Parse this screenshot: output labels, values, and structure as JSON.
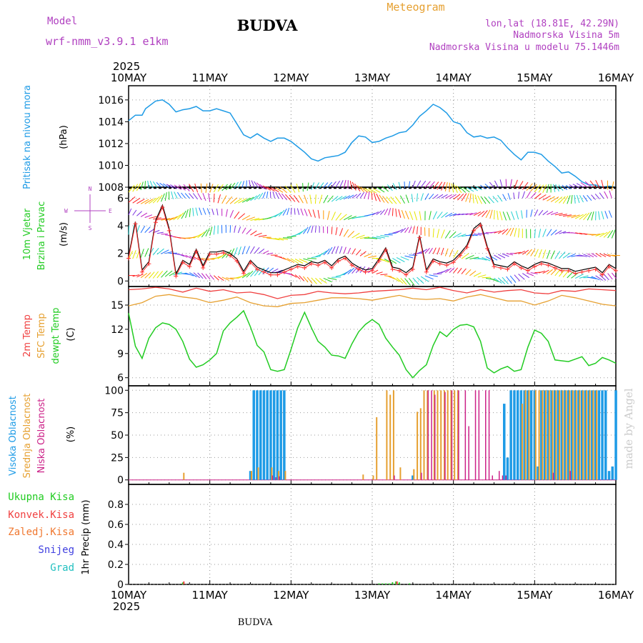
{
  "header": {
    "model_label": "Model",
    "model_name": "wrf-nmm_v3.9.1 e1km",
    "station": "BUDVA",
    "title": "Meteogram",
    "lonlat": "lon,lat (18.81E, 42.29N)",
    "elevation": "Nadmorska Visina 5m",
    "model_elevation": "Nadmorska Visina u modelu 75.1446m",
    "footer_station": "BUDVA",
    "watermark": "made by Angel"
  },
  "time_axis": {
    "year": "2025",
    "labels": [
      "10MAY",
      "11MAY",
      "12MAY",
      "13MAY",
      "14MAY",
      "15MAY",
      "16MAY"
    ],
    "range_hours": [
      0,
      144
    ]
  },
  "colors": {
    "pressure": "#1e9be6",
    "temp2m": "#f04040",
    "sfc_temp": "#e6a030",
    "dewpoint": "#22cc22",
    "high_cloud": "#1e9be6",
    "mid_cloud": "#e6a030",
    "low_cloud": "#cc2288",
    "total_precip": "#22cc22",
    "conv_precip": "#f04040",
    "frz_precip": "#f07830",
    "snow": "#4040e0",
    "graupel": "#22c0c0",
    "wind_label": "#22cc22",
    "compass": "#b040c0",
    "wind_barb_colors": [
      "#ff2020",
      "#ff9a00",
      "#e6e600",
      "#22cc22",
      "#22d0d0",
      "#1e70ff",
      "#7a30e0",
      "#c020c0"
    ]
  },
  "panels": {
    "pressure": {
      "label": "Pritisak na nivou mora",
      "unit": "(hPa)",
      "ticks": [
        "1008",
        "1010",
        "1012",
        "1014",
        "1016"
      ],
      "ylim": [
        1008,
        1017.3
      ]
    },
    "wind": {
      "label1": "10m Vjetar",
      "label2": "Brzina i Pravac",
      "unit": "(m/s)",
      "ticks": [
        "0",
        "2",
        "4",
        "6"
      ],
      "ylim": [
        -0.4,
        6.8
      ],
      "compass": {
        "n": "N",
        "s": "S",
        "e": "E",
        "w": "W"
      }
    },
    "temperature": {
      "label1": "2m Temp",
      "label2": "SFC Temp",
      "label3": "dewpt Temp",
      "unit": "(C)",
      "ticks": [
        "6",
        "9",
        "12",
        "15"
      ],
      "ylim": [
        5,
        17.3
      ]
    },
    "cloud": {
      "label1": "Visoka Oblacnost",
      "label2": "Srednja Oblacnost",
      "label3": "Niska Oblacnost",
      "unit": "(%)",
      "ticks": [
        "0",
        "25",
        "50",
        "75",
        "100"
      ],
      "ylim": [
        -5,
        105
      ]
    },
    "precip": {
      "legend": [
        "Ukupna Kisa",
        "Konvek.Kisa",
        "Zaledj.Kisa",
        "Snijeg",
        "Grad"
      ],
      "unit": "1hr Precip (mm)",
      "ticks": [
        "0",
        "0.2",
        "0.4",
        "0.6",
        "0.8"
      ],
      "ylim": [
        0,
        1.0
      ]
    }
  },
  "chart_data": [
    {
      "type": "line",
      "series": [
        {
          "name": "Pritisak na nivou mora",
          "x": [
            0,
            2,
            4,
            5,
            8,
            10,
            12,
            14,
            16,
            18,
            20,
            22,
            24,
            26,
            28,
            30,
            32,
            34,
            36,
            38,
            40,
            42,
            44,
            46,
            48,
            50,
            52,
            54,
            56,
            58,
            60,
            62,
            64,
            66,
            68,
            70,
            72,
            74,
            76,
            78,
            80,
            82,
            84,
            86,
            88,
            90,
            92,
            94,
            96,
            98,
            100,
            102,
            104,
            106,
            108,
            110,
            112,
            114,
            116,
            118,
            120,
            122,
            124,
            126,
            128,
            130,
            132,
            134,
            136,
            138,
            140,
            142,
            144
          ],
          "y": [
            1014.1,
            1014.6,
            1014.6,
            1015.2,
            1015.9,
            1016.0,
            1015.6,
            1014.9,
            1015.1,
            1015.2,
            1015.4,
            1015.0,
            1015.0,
            1015.2,
            1015.0,
            1014.8,
            1013.8,
            1012.8,
            1012.5,
            1012.9,
            1012.5,
            1012.2,
            1012.5,
            1012.5,
            1012.2,
            1011.7,
            1011.2,
            1010.6,
            1010.4,
            1010.7,
            1010.8,
            1010.9,
            1011.2,
            1012.1,
            1012.7,
            1012.6,
            1012.1,
            1012.2,
            1012.5,
            1012.7,
            1013.0,
            1013.1,
            1013.7,
            1014.5,
            1015.0,
            1015.6,
            1015.3,
            1014.8,
            1014.0,
            1013.8,
            1013.0,
            1012.6,
            1012.7,
            1012.5,
            1012.6,
            1012.3,
            1011.6,
            1011.0,
            1010.5,
            1011.2,
            1011.2,
            1011.0,
            1010.4,
            1009.9,
            1009.3,
            1009.4,
            1009.0,
            1008.5,
            1008.2,
            1008.2,
            1008.0,
            1008.1,
            1008.0
          ]
        }
      ],
      "ylim": [
        1008,
        1017.3
      ]
    },
    {
      "type": "line",
      "series": [
        {
          "name": "10m Vjetar",
          "x": [
            0,
            2,
            4,
            6,
            8,
            10,
            12,
            14,
            16,
            18,
            20,
            22,
            24,
            26,
            28,
            30,
            32,
            34,
            36,
            38,
            40,
            42,
            44,
            46,
            48,
            50,
            52,
            54,
            56,
            58,
            60,
            62,
            64,
            66,
            68,
            70,
            72,
            74,
            76,
            78,
            80,
            82,
            84,
            86,
            88,
            90,
            92,
            94,
            96,
            98,
            100,
            102,
            104,
            106,
            108,
            110,
            112,
            114,
            116,
            118,
            120,
            122,
            124,
            126,
            128,
            130,
            132,
            134,
            136,
            138,
            140,
            142,
            144
          ],
          "y": [
            1.8,
            4.3,
            0.8,
            1.4,
            4.4,
            5.5,
            3.8,
            0.5,
            1.5,
            1.2,
            2.3,
            1.1,
            2.1,
            2.1,
            2.2,
            2.0,
            1.6,
            0.7,
            1.5,
            1.0,
            0.8,
            0.6,
            0.6,
            0.8,
            1.0,
            1.2,
            1.1,
            1.4,
            1.3,
            1.5,
            1.1,
            1.6,
            1.8,
            1.3,
            1.0,
            0.8,
            0.9,
            1.6,
            2.4,
            1.0,
            0.9,
            0.6,
            1.0,
            3.3,
            0.8,
            1.6,
            1.4,
            1.3,
            1.5,
            2.0,
            2.6,
            3.8,
            4.2,
            2.5,
            1.2,
            1.1,
            1.0,
            1.4,
            1.1,
            0.9,
            1.2,
            1.4,
            1.3,
            1.1,
            0.9,
            0.9,
            0.7,
            0.8,
            0.9,
            1.0,
            0.6,
            1.2,
            0.9
          ]
        }
      ],
      "ylim": [
        -0.4,
        6.8
      ]
    },
    {
      "type": "line",
      "series": [
        {
          "name": "2m Temp",
          "x": [
            0,
            4,
            8,
            12,
            16,
            20,
            24,
            28,
            32,
            36,
            40,
            44,
            48,
            52,
            56,
            60,
            64,
            68,
            72,
            76,
            80,
            84,
            88,
            92,
            96,
            100,
            104,
            108,
            112,
            116,
            120,
            124,
            128,
            132,
            136,
            140,
            144
          ],
          "y": [
            16.9,
            17.0,
            17.2,
            17.0,
            16.6,
            17.1,
            16.7,
            16.9,
            16.5,
            16.6,
            16.3,
            15.8,
            16.2,
            16.3,
            16.7,
            16.5,
            16.4,
            16.5,
            16.7,
            16.8,
            16.9,
            17.1,
            16.9,
            17.2,
            16.8,
            16.5,
            16.9,
            16.6,
            16.8,
            16.9,
            16.5,
            16.4,
            16.8,
            16.7,
            17.0,
            16.9,
            16.8
          ]
        },
        {
          "name": "SFC Temp",
          "x": [
            0,
            4,
            8,
            12,
            16,
            20,
            24,
            28,
            32,
            36,
            40,
            44,
            48,
            52,
            56,
            60,
            64,
            68,
            72,
            76,
            80,
            84,
            88,
            92,
            96,
            100,
            104,
            108,
            112,
            116,
            120,
            124,
            128,
            132,
            136,
            140,
            144
          ],
          "y": [
            14.9,
            15.3,
            16.1,
            16.3,
            16.0,
            15.8,
            15.3,
            15.6,
            16.0,
            15.3,
            14.9,
            14.8,
            15.2,
            15.3,
            15.6,
            15.9,
            15.9,
            15.8,
            15.6,
            15.9,
            16.2,
            15.8,
            15.7,
            15.8,
            15.5,
            16.0,
            16.3,
            15.9,
            15.5,
            15.5,
            15.0,
            15.5,
            16.2,
            15.9,
            15.5,
            15.1,
            14.9
          ]
        },
        {
          "name": "dewpt Temp",
          "x": [
            0,
            2,
            4,
            6,
            8,
            10,
            12,
            14,
            16,
            18,
            20,
            22,
            24,
            26,
            28,
            30,
            32,
            34,
            36,
            38,
            40,
            42,
            44,
            46,
            48,
            50,
            52,
            54,
            56,
            58,
            60,
            62,
            64,
            66,
            68,
            70,
            72,
            74,
            76,
            78,
            80,
            82,
            84,
            86,
            88,
            90,
            92,
            94,
            96,
            98,
            100,
            102,
            104,
            106,
            108,
            110,
            112,
            114,
            116,
            118,
            120,
            122,
            124,
            126,
            128,
            130,
            132,
            134,
            136,
            138,
            140,
            142,
            144
          ],
          "y": [
            14.0,
            9.9,
            8.4,
            10.9,
            12.2,
            12.8,
            12.6,
            12.0,
            10.5,
            8.3,
            7.3,
            7.6,
            8.2,
            9.0,
            11.8,
            12.8,
            13.5,
            14.3,
            12.3,
            10.0,
            9.2,
            7.0,
            6.8,
            7.0,
            9.5,
            12.2,
            14.1,
            12.2,
            10.5,
            9.8,
            8.8,
            8.7,
            8.4,
            10.2,
            11.7,
            12.6,
            13.2,
            12.6,
            10.9,
            9.8,
            8.8,
            7.0,
            6.0,
            6.9,
            7.6,
            10.0,
            11.7,
            11.1,
            12.0,
            12.5,
            12.6,
            12.3,
            10.5,
            7.2,
            6.6,
            7.1,
            7.4,
            6.8,
            7.0,
            9.8,
            11.9,
            11.5,
            10.5,
            8.2,
            8.1,
            8.0,
            8.3,
            8.6,
            7.5,
            7.8,
            8.5,
            8.2,
            7.8
          ]
        }
      ],
      "ylim": [
        5,
        17.3
      ]
    },
    {
      "type": "bar",
      "series": [
        {
          "name": "Visoka Oblacnost",
          "x": [
            36,
            37,
            38,
            39,
            40,
            41,
            42,
            43,
            44,
            45,
            46,
            84,
            111,
            112,
            113,
            114,
            115,
            116,
            117,
            118,
            119,
            120,
            121,
            122,
            123,
            124,
            125,
            126,
            127,
            128,
            129,
            130,
            131,
            132,
            133,
            134,
            135,
            136,
            137,
            138,
            139,
            140,
            141,
            142,
            143,
            144
          ],
          "values": [
            10,
            100,
            100,
            100,
            100,
            100,
            100,
            100,
            100,
            100,
            100,
            5,
            85,
            25,
            100,
            100,
            100,
            100,
            100,
            100,
            100,
            100,
            15,
            100,
            100,
            100,
            100,
            100,
            100,
            100,
            100,
            100,
            100,
            100,
            100,
            100,
            100,
            100,
            100,
            100,
            100,
            100,
            100,
            10,
            15,
            100
          ]
        },
        {
          "name": "Srednja Oblacnost",
          "x": [
            16,
            36,
            38,
            42,
            44,
            46,
            69,
            72,
            73,
            76,
            77,
            78,
            80,
            84,
            85,
            86,
            87,
            88,
            90,
            91,
            92,
            93,
            94,
            95,
            96,
            97,
            116,
            117,
            118,
            120,
            121,
            122,
            123,
            124,
            125,
            126,
            127,
            128,
            129,
            130,
            131,
            132,
            133,
            134,
            135,
            136,
            137,
            138
          ],
          "values": [
            8,
            10,
            14,
            14,
            10,
            10,
            6,
            5,
            70,
            100,
            95,
            100,
            14,
            12,
            76,
            80,
            100,
            100,
            100,
            100,
            100,
            100,
            100,
            100,
            100,
            100,
            85,
            100,
            100,
            100,
            100,
            100,
            100,
            100,
            100,
            100,
            100,
            100,
            100,
            100,
            100,
            100,
            100,
            100,
            100,
            100,
            100,
            100
          ]
        },
        {
          "name": "Niska Oblacnost",
          "x": [
            42,
            43,
            44,
            78,
            86,
            88,
            89,
            90,
            93,
            95,
            97,
            99,
            100,
            102,
            103,
            105,
            106,
            107,
            109,
            110,
            111,
            125,
            130
          ],
          "values": [
            5,
            3,
            4,
            5,
            8,
            100,
            100,
            95,
            98,
            100,
            100,
            100,
            60,
            100,
            100,
            100,
            100,
            5,
            10,
            5,
            5,
            8,
            10
          ]
        }
      ],
      "ylim": [
        0,
        100
      ]
    },
    {
      "type": "bar",
      "series": [
        {
          "name": "Ukupna Kisa",
          "x": [
            16,
            74,
            75,
            76,
            77,
            78,
            79,
            80,
            83
          ],
          "values": [
            0.02,
            0.01,
            0.01,
            0.01,
            0.01,
            0.02,
            0.03,
            0.02,
            0.01
          ]
        },
        {
          "name": "Konvek.Kisa",
          "x": [
            16,
            79
          ],
          "values": [
            0.03,
            0.03
          ]
        },
        {
          "name": "Zaledj.Kisa",
          "x": [],
          "values": []
        },
        {
          "name": "Snijeg",
          "x": [],
          "values": []
        },
        {
          "name": "Grad",
          "x": [],
          "values": []
        }
      ],
      "ylim": [
        0,
        1.0
      ]
    }
  ]
}
